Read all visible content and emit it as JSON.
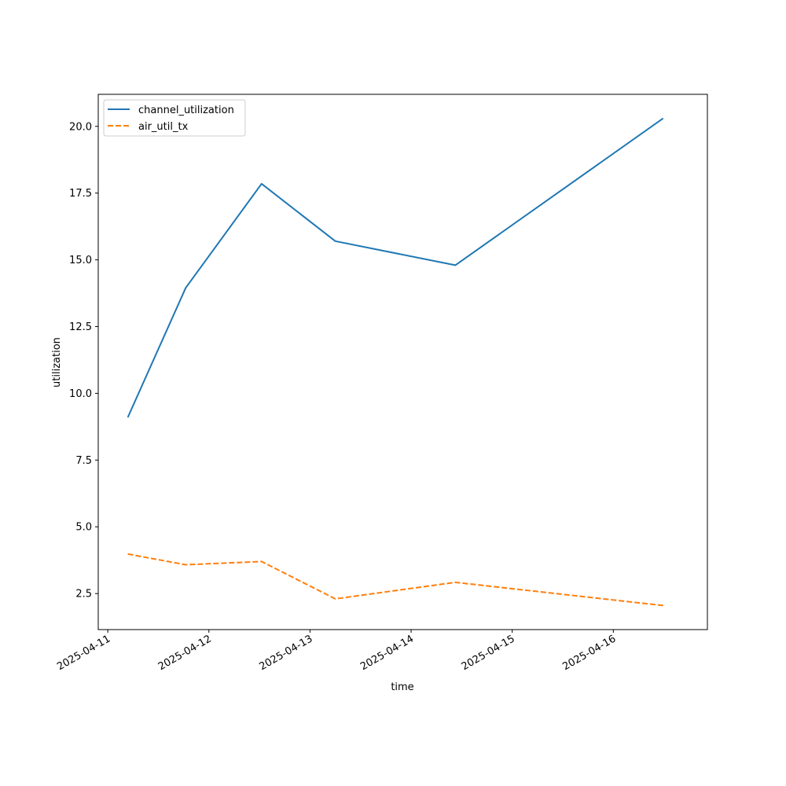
{
  "chart_data": {
    "type": "line",
    "title": "",
    "xlabel": "time",
    "ylabel": "utilization",
    "x_scale": "time",
    "xlim": [
      "2025-04-10 21:44",
      "2025-04-16 22:20"
    ],
    "ylim": [
      1.15,
      21.2
    ],
    "xticks": [
      "2025-04-11",
      "2025-04-12",
      "2025-04-13",
      "2025-04-14",
      "2025-04-15",
      "2025-04-16"
    ],
    "yticks": [
      "2.5",
      "5.0",
      "7.5",
      "10.0",
      "12.5",
      "15.0",
      "17.5",
      "20.0"
    ],
    "grid": false,
    "legend": {
      "position": "upper-left"
    },
    "x": [
      "2025-04-11 04:45",
      "2025-04-11 18:30",
      "2025-04-12 12:30",
      "2025-04-13 06:00",
      "2025-04-14 10:30",
      "2025-04-16 11:50"
    ],
    "series": [
      {
        "name": "channel_utilization",
        "color": "#1f77b4",
        "style": "solid",
        "values": [
          9.1,
          13.95,
          17.85,
          15.7,
          14.8,
          20.3
        ]
      },
      {
        "name": "air_util_tx",
        "color": "#ff7f0e",
        "style": "dashed",
        "values": [
          3.98,
          3.58,
          3.7,
          2.3,
          2.92,
          2.05
        ]
      }
    ]
  }
}
